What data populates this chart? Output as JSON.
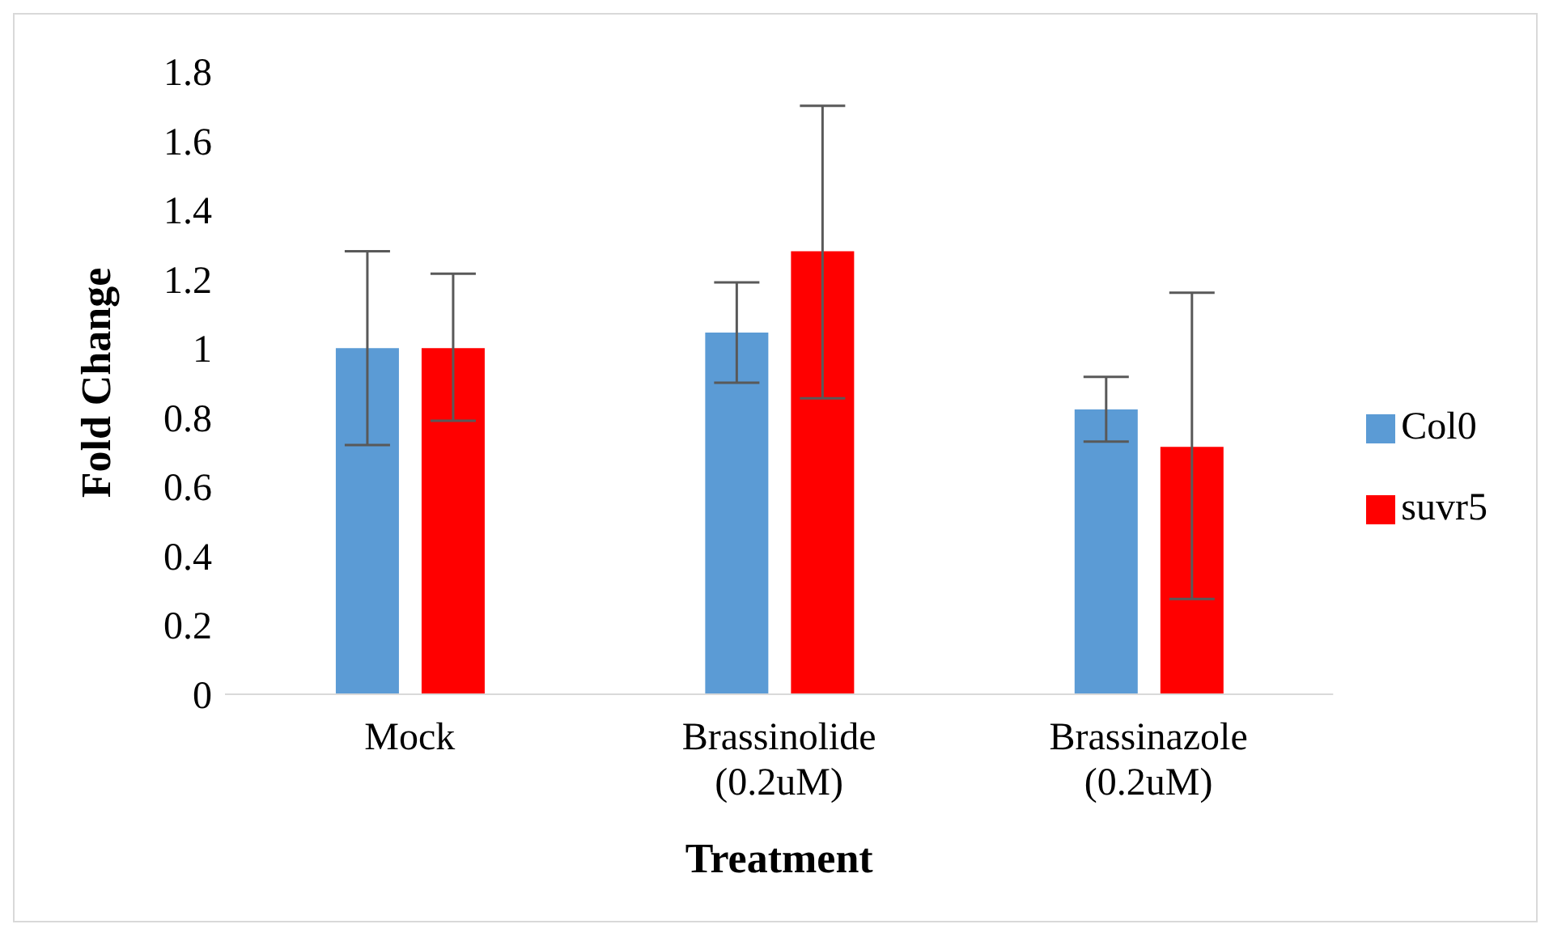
{
  "chart_data": {
    "type": "bar",
    "xlabel": "Treatment",
    "ylabel": "Fold Change",
    "categories": [
      "Mock",
      "Brassinolide (0.2uM)",
      "Brassinazole (0.2uM)"
    ],
    "series": [
      {
        "name": "Col0",
        "color": "#5b9bd5",
        "values": [
          1.0,
          1.045,
          0.823
        ],
        "errors": [
          [
            0.72,
            1.28
          ],
          [
            0.9,
            1.19
          ],
          [
            0.73,
            0.917
          ]
        ]
      },
      {
        "name": "suvr5",
        "color": "#ff0000",
        "values": [
          1.0,
          1.28,
          0.715
        ],
        "errors": [
          [
            0.79,
            1.215
          ],
          [
            0.855,
            1.7
          ],
          [
            0.275,
            1.16
          ]
        ]
      }
    ],
    "ylim": [
      0,
      1.8
    ],
    "yticks": [
      0,
      0.2,
      0.4,
      0.6,
      0.8,
      1,
      1.2,
      1.4,
      1.6,
      1.8
    ],
    "grid": false,
    "legend": "right"
  }
}
